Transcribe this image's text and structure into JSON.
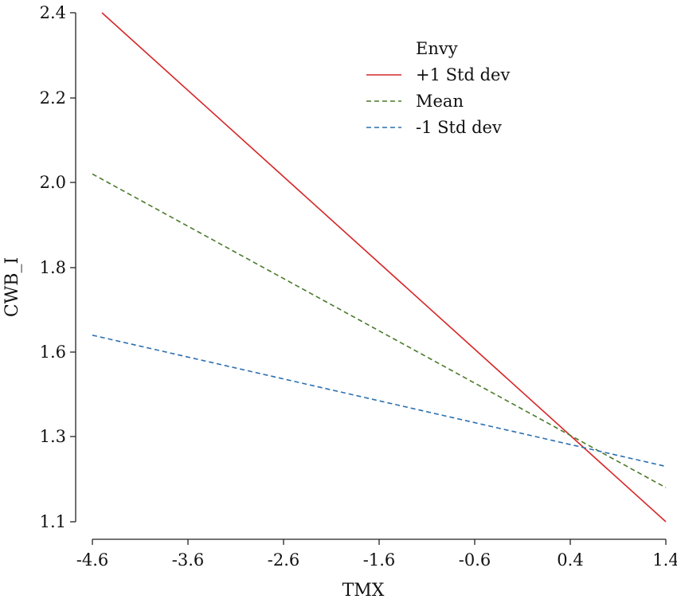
{
  "chart_data": {
    "type": "line",
    "title": "",
    "xlabel": "TMX",
    "ylabel": "CWB_I",
    "x_ticks": [
      -4.6,
      -3.6,
      -2.6,
      -1.6,
      -0.6,
      0.4,
      1.4
    ],
    "x_tick_labels": [
      "-4.6",
      "-3.6",
      "-2.6",
      "-1.6",
      "-0.6",
      "0.4",
      "1.4"
    ],
    "y_ticks": [
      1.1,
      1.3,
      1.6,
      1.8,
      2.0,
      2.2,
      2.4
    ],
    "y_tick_labels": [
      "1.1",
      "1.3",
      "1.6",
      "1.8",
      "2.0",
      "2.2",
      "2.4"
    ],
    "xlim": [
      -4.6,
      1.4
    ],
    "ylim": [
      1.1,
      2.4
    ],
    "grid": false,
    "legend": {
      "title": "Envy",
      "position": "top-right"
    },
    "series": [
      {
        "name": "+1 Std dev",
        "color": "#d62728",
        "dash": "solid",
        "points": [
          [
            -4.5,
            2.4
          ],
          [
            1.4,
            1.1
          ]
        ]
      },
      {
        "name": "Mean",
        "color": "#4a7a2a",
        "dash": "dashed",
        "points": [
          [
            -4.6,
            2.02
          ],
          [
            1.4,
            1.18
          ]
        ]
      },
      {
        "name": "-1 Std dev",
        "color": "#2c6fb0",
        "dash": "dashed",
        "points": [
          [
            -4.6,
            1.64
          ],
          [
            1.4,
            1.23
          ]
        ]
      }
    ]
  }
}
